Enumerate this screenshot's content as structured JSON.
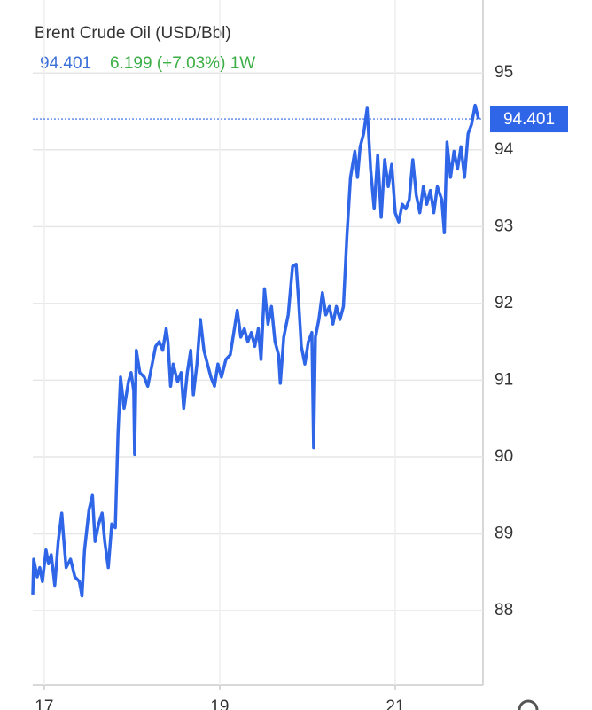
{
  "chart_data": {
    "type": "line",
    "title": "Brent Crude Oil (USD/Bbl)",
    "last_price": 94.401,
    "change": "6.199 (+7.03%) 1W",
    "color": "#2f66e8",
    "grid": true,
    "xlim": [
      16.87,
      22.0
    ],
    "xticks": [
      17,
      19,
      21
    ],
    "ylim": [
      87.03,
      95.95
    ],
    "yticks": [
      88,
      89,
      90,
      91,
      92,
      93,
      94,
      95
    ],
    "x": [
      16.87,
      16.88,
      16.92,
      16.95,
      16.98,
      17.02,
      17.05,
      17.08,
      17.12,
      17.16,
      17.2,
      17.22,
      17.25,
      17.3,
      17.35,
      17.4,
      17.43,
      17.46,
      17.51,
      17.55,
      17.58,
      17.62,
      17.66,
      17.69,
      17.73,
      17.77,
      17.81,
      17.84,
      17.87,
      17.91,
      17.96,
      17.99,
      18.02,
      18.03,
      18.05,
      18.09,
      18.14,
      18.18,
      18.23,
      18.27,
      18.31,
      18.35,
      18.39,
      18.41,
      18.44,
      18.47,
      18.52,
      18.56,
      18.59,
      18.63,
      18.67,
      18.7,
      18.74,
      18.78,
      18.82,
      18.86,
      18.9,
      18.94,
      18.98,
      19.02,
      19.07,
      19.12,
      19.16,
      19.2,
      19.24,
      19.28,
      19.32,
      19.36,
      19.4,
      19.44,
      19.47,
      19.51,
      19.55,
      19.59,
      19.63,
      19.67,
      19.69,
      19.73,
      19.78,
      19.83,
      19.87,
      19.9,
      19.93,
      19.97,
      20.01,
      20.05,
      20.07,
      20.09,
      20.13,
      20.17,
      20.21,
      20.25,
      20.29,
      20.33,
      20.37,
      20.41,
      20.45,
      20.49,
      20.54,
      20.57,
      20.6,
      20.64,
      20.68,
      20.72,
      20.76,
      20.8,
      20.84,
      20.88,
      20.92,
      20.96,
      21.0,
      21.04,
      21.08,
      21.12,
      21.16,
      21.2,
      21.24,
      21.28,
      21.32,
      21.36,
      21.4,
      21.44,
      21.48,
      21.53,
      21.56,
      21.59,
      21.63,
      21.67,
      21.71,
      21.75,
      21.79,
      21.83,
      21.87,
      21.91,
      21.95
    ],
    "values": [
      88.21,
      88.67,
      88.44,
      88.56,
      88.38,
      88.79,
      88.61,
      88.73,
      88.33,
      88.9,
      89.27,
      88.96,
      88.56,
      88.67,
      88.44,
      88.38,
      88.19,
      88.79,
      89.31,
      89.5,
      88.9,
      89.13,
      89.27,
      88.9,
      88.56,
      89.13,
      89.08,
      90.29,
      91.04,
      90.63,
      90.98,
      91.1,
      90.86,
      90.03,
      91.39,
      91.1,
      91.04,
      90.92,
      91.21,
      91.44,
      91.5,
      91.39,
      91.67,
      91.5,
      90.92,
      91.21,
      90.98,
      91.1,
      90.63,
      91.1,
      91.39,
      90.81,
      91.21,
      91.79,
      91.39,
      91.21,
      91.04,
      90.92,
      91.21,
      91.04,
      91.27,
      91.33,
      91.62,
      91.91,
      91.56,
      91.67,
      91.5,
      91.62,
      91.44,
      91.67,
      91.27,
      92.19,
      91.73,
      91.96,
      91.5,
      91.33,
      90.96,
      91.56,
      91.85,
      92.48,
      92.51,
      92.02,
      91.44,
      91.21,
      91.5,
      91.62,
      90.12,
      91.56,
      91.79,
      92.14,
      91.85,
      91.96,
      91.73,
      91.96,
      91.79,
      91.96,
      92.89,
      93.64,
      93.98,
      93.64,
      94.04,
      94.21,
      94.54,
      93.75,
      93.23,
      93.93,
      93.12,
      93.87,
      93.52,
      93.81,
      93.18,
      93.06,
      93.29,
      93.23,
      93.35,
      93.87,
      93.41,
      93.18,
      93.52,
      93.29,
      93.47,
      93.18,
      93.52,
      93.35,
      92.92,
      94.1,
      93.64,
      93.98,
      93.75,
      94.04,
      93.64,
      94.21,
      94.33,
      94.58,
      94.401
    ]
  }
}
